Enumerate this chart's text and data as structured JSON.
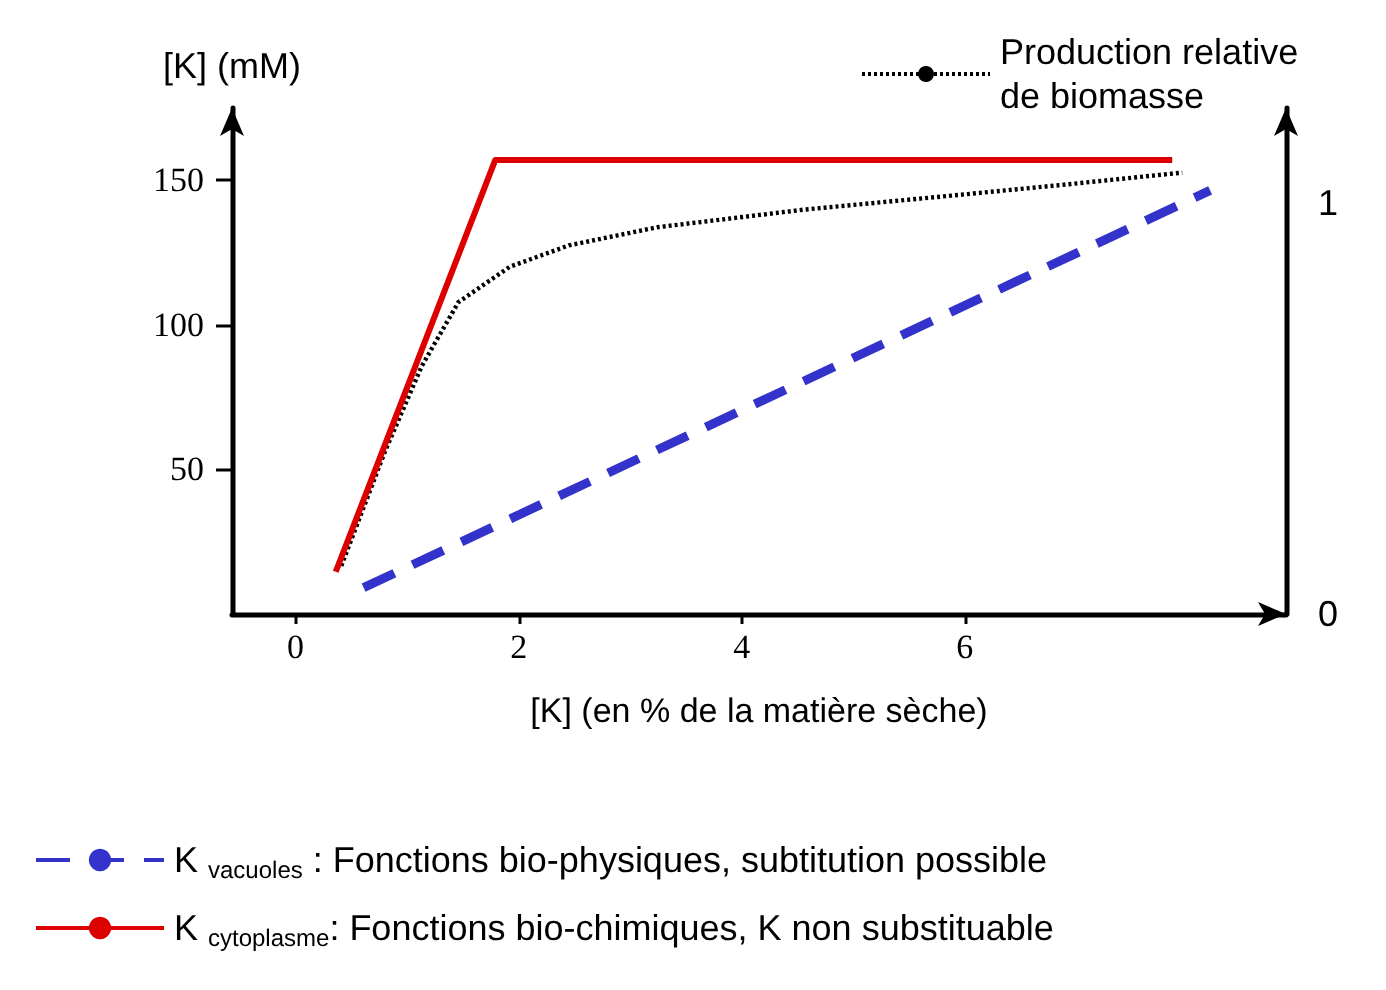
{
  "chart_data": {
    "type": "line",
    "xlabel": "[K] (en % de la matière sèche)",
    "ylabel": "[K] (mM)",
    "xlim": [
      -0.57,
      8.88
    ],
    "xticks": [
      0,
      2,
      4,
      6
    ],
    "ylim": [
      0,
      175
    ],
    "yticks": [
      50,
      100,
      150
    ],
    "y2lim": [
      0,
      1.23
    ],
    "y2ticks": [
      0,
      1
    ],
    "legend": "bottom",
    "grid": false,
    "marker": "none",
    "series": [
      {
        "name": "K $_{vacuoles}$ : Fonctions bio-physiques, subtitution possible",
        "color": "#3333cc",
        "line_style": "dashed",
        "x": [
          0.61,
          8.2
        ],
        "values": [
          9.1,
          146.5
        ]
      },
      {
        "name": "K $_{cytoplasme}$: Fonctions bio-chimiques, K non substituable",
        "color": "#dd0000",
        "line_style": "solid",
        "x": [
          0.36,
          1.79,
          7.86
        ],
        "values": [
          14.6,
          157,
          157
        ]
      },
      {
        "name": "Production relative de biomasse",
        "color": "#000000",
        "line_style": "dotted",
        "axis": "y2",
        "x": [
          0.41,
          0.8,
          1.13,
          1.46,
          1.92,
          2.45,
          3.24,
          4.56,
          5.88,
          6.87,
          7.95
        ],
        "values": [
          0.117,
          0.394,
          0.602,
          0.758,
          0.844,
          0.896,
          0.94,
          0.983,
          1.017,
          1.043,
          1.073
        ]
      }
    ]
  }
}
